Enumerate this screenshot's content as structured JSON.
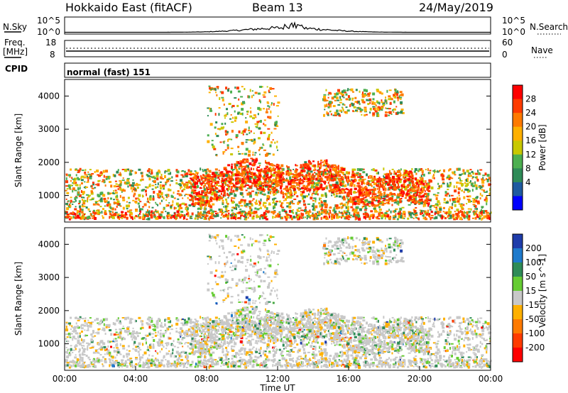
{
  "header": {
    "station": "Hokkaido East (fitACF)",
    "beam": "Beam 13",
    "date": "24/May/2019"
  },
  "noise_panel": {
    "left_label": "N.Sky",
    "right_label": "N.Search",
    "tick_top": "10^5",
    "tick_bottom": "10^0"
  },
  "freq_panel": {
    "label_line1": "Freq.",
    "label_line2": "[MHz]",
    "tick_top": "18",
    "tick_bottom": "8",
    "right_label": "Nave",
    "right_tick_top": "60",
    "right_tick_bottom": "0"
  },
  "cpid_panel": {
    "label": "CPID",
    "value": "normal (fast) 151"
  },
  "chart_data": [
    {
      "type": "heatmap",
      "name": "power",
      "ylabel": "Slant Range [km]",
      "yticks": [
        "1000",
        "2000",
        "3000",
        "4000"
      ],
      "ylim": [
        200,
        4500
      ],
      "colorbar": {
        "label": "Power [dB]",
        "ticks": [
          "28",
          "24",
          "20",
          "16",
          "12",
          "8",
          "4"
        ],
        "colors": [
          "#ff0000",
          "#ff3b00",
          "#ff7a00",
          "#ffb000",
          "#c8c800",
          "#4caf50",
          "#2e8b57",
          "#1e5aa0",
          "#0000ff"
        ]
      },
      "regions": [
        {
          "t0": 0.0,
          "t1": 24.0,
          "r0": 300,
          "r1": 1800,
          "level": "weak-mixed"
        },
        {
          "t0": 7.0,
          "t1": 20.5,
          "r0": 1200,
          "r1": 2200,
          "level": "strong"
        },
        {
          "t0": 8.0,
          "t1": 12.0,
          "r0": 2200,
          "r1": 4300,
          "level": "weak"
        },
        {
          "t0": 14.5,
          "t1": 19.0,
          "r0": 3400,
          "r1": 4200,
          "level": "weak"
        }
      ]
    },
    {
      "type": "heatmap",
      "name": "velocity",
      "ylabel": "Slant Range [km]",
      "yticks": [
        "1000",
        "2000",
        "3000",
        "4000"
      ],
      "ylim": [
        200,
        4500
      ],
      "colorbar": {
        "label": "Velocity [m s^-1]",
        "ticks": [
          "200",
          "100",
          "50",
          "15",
          "-15",
          "-50",
          "-100",
          "-200"
        ],
        "colors": [
          "#1e3caa",
          "#1e7acc",
          "#2e8b57",
          "#66cc33",
          "#c8c8c8",
          "#ffb000",
          "#ff7a00",
          "#ff3b00",
          "#ff0000"
        ]
      },
      "xlabel": "Time UT",
      "xticks": [
        "00:00",
        "04:00",
        "08:00",
        "12:00",
        "16:00",
        "20:00",
        "00:00"
      ]
    }
  ]
}
